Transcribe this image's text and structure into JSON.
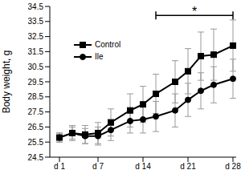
{
  "chart_data": {
    "type": "line",
    "ylabel": "Body weight, g",
    "x": [
      1,
      3,
      5,
      7,
      9,
      12,
      14,
      16,
      19,
      21,
      23,
      25,
      28
    ],
    "xlim": [
      -0.5,
      28.5
    ],
    "xticks": [
      {
        "value": 1,
        "label": "d 1"
      },
      {
        "value": 7,
        "label": "d 7"
      },
      {
        "value": 14,
        "label": "d 14"
      },
      {
        "value": 21,
        "label": "d 21"
      },
      {
        "value": 28,
        "label": "d 28"
      }
    ],
    "ylim": [
      24.5,
      34.5
    ],
    "yticks": [
      24.5,
      25.5,
      26.5,
      27.5,
      28.5,
      29.5,
      30.5,
      31.5,
      32.5,
      33.5,
      34.5
    ],
    "grid": false,
    "legend": "upper left",
    "series": [
      {
        "name": "Control",
        "color": "#000000",
        "marker": "square",
        "values": [
          25.8,
          26.1,
          26.0,
          26.1,
          26.8,
          27.6,
          28.0,
          28.7,
          29.5,
          30.2,
          31.2,
          31.3,
          31.9
        ],
        "error": [
          0.3,
          0.5,
          0.6,
          0.7,
          0.9,
          1.1,
          1.2,
          1.3,
          1.4,
          1.5,
          1.6,
          1.7,
          1.7
        ]
      },
      {
        "name": "Ile",
        "color": "#000000",
        "marker": "circle",
        "values": [
          25.8,
          26.1,
          25.9,
          25.9,
          26.3,
          26.9,
          27.0,
          27.2,
          27.6,
          28.3,
          28.9,
          29.3,
          29.7
        ],
        "error": [
          0.3,
          0.4,
          0.5,
          0.6,
          0.7,
          0.8,
          0.9,
          1.0,
          1.1,
          1.1,
          1.2,
          1.2,
          1.3
        ]
      }
    ],
    "annotations": [
      {
        "text": "*",
        "x_start": 16,
        "x_end": 28,
        "y": 33.9
      }
    ]
  }
}
